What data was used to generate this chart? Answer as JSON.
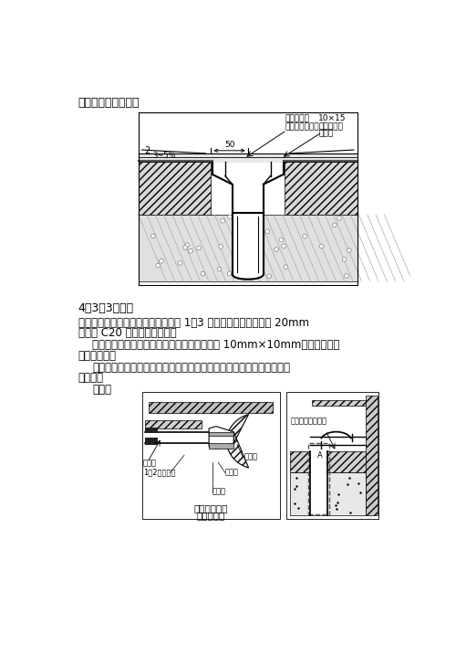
{
  "bg_color": "#ffffff",
  "title_label": "如图：地漏防水构造",
  "section_label": "4．3．3坐便器",
  "para1": "大便器立管定位后，楼板四周缝隙用 1：3 水泥砂浆堵严，缝大于 20mm",
  "para1b": "时宜用 C20 细石混凝土堵严。",
  "para2": "立管接口处四周用密封材料交圈封严，尺寸为 10mm×10mm，上面防水层",
  "para2b": "做至管顶部。",
  "para3": "大便器尾部进水处与管接口用密封材料及水泥砂浆封严，外做涂膜防水",
  "para3b": "保护层。",
  "figure2_label": "如图：",
  "sub_label1": "大便器进水管",
  "sub_label2": "与管口连接",
  "ann1_line1": "立管接缝用",
  "ann1_line2": "建筑密封膏堵严",
  "ann2_top": "10×15",
  "ann2_line1": "建筑密封膏",
  "ann2_line2": "防水层",
  "dim_50": "50",
  "dim_slope": "3~5%",
  "num_2": "2",
  "label_flush": "冲洗管",
  "label_cement": "1：2水泥砂浆",
  "label_hemp": "油麷丝",
  "label_toilet": "大便器",
  "label_sealant": "密封膏",
  "label_coating": "外做涂膜防水保护"
}
